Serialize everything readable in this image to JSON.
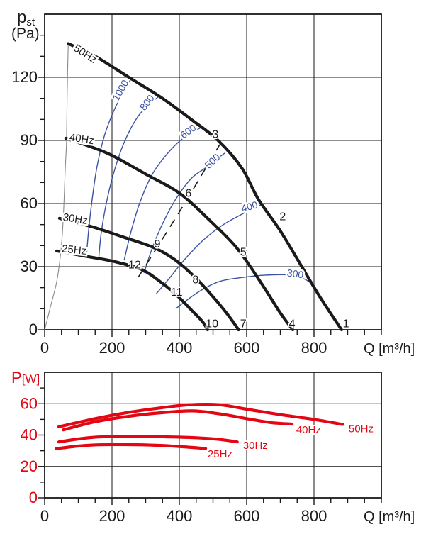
{
  "colors": {
    "black": "#1a1a1a",
    "blue": "#3b53a4",
    "red": "#e30613",
    "gray": "#8a8a8a",
    "grid": "#1a1a1a",
    "background": "#ffffff"
  },
  "chart_data": [
    {
      "type": "line",
      "title": "",
      "ylabel_main": "p",
      "ylabel_sub": "st",
      "ylabel_unit": "(Pa)",
      "xlabel": "Q [m³/h]",
      "xlim": [
        0,
        1000
      ],
      "ylim": [
        0,
        150
      ],
      "x_gridlines": [
        200,
        400,
        600,
        800
      ],
      "y_gridlines": [
        30,
        60,
        90,
        120
      ],
      "x_tick_labels": [
        "0",
        "200",
        "400",
        "600",
        "800"
      ],
      "x_tick_values": [
        0,
        200,
        400,
        600,
        800
      ],
      "y_tick_labels": [
        "0",
        "30",
        "60",
        "90",
        "120"
      ],
      "y_tick_values": [
        0,
        30,
        60,
        90,
        120
      ],
      "minor_x_step": 50,
      "minor_y_step": 10,
      "fan_curves": [
        {
          "label": "50Hz",
          "label_q": 84,
          "label_p": 133,
          "label_rot": 33,
          "points": [
            [
              70,
              136
            ],
            [
              150,
              130
            ],
            [
              250,
              120
            ],
            [
              350,
              110
            ],
            [
              435,
              100
            ],
            [
              515,
              90
            ],
            [
              585,
              77
            ],
            [
              635,
              62
            ],
            [
              700,
              47
            ],
            [
              760,
              31
            ],
            [
              820,
              15
            ],
            [
              882,
              0
            ]
          ]
        },
        {
          "label": "40Hz",
          "label_q": 72,
          "label_p": 90,
          "label_rot": 9,
          "points": [
            [
              63,
              91
            ],
            [
              185,
              84
            ],
            [
              300,
              74
            ],
            [
              400,
              65
            ],
            [
              490,
              52
            ],
            [
              570,
              39
            ],
            [
              640,
              23
            ],
            [
              700,
              8
            ],
            [
              737,
              0
            ]
          ]
        },
        {
          "label": "30Hz",
          "label_q": 53,
          "label_p": 52,
          "label_rot": 9,
          "points": [
            [
              44,
              53
            ],
            [
              140,
              49
            ],
            [
              235,
              44
            ],
            [
              325,
              39
            ],
            [
              385,
              33.5
            ],
            [
              440,
              26
            ],
            [
              490,
              17.5
            ],
            [
              540,
              8
            ],
            [
              576,
              0
            ]
          ]
        },
        {
          "label": "25Hz",
          "label_q": 50,
          "label_p": 37,
          "label_rot": 6,
          "points": [
            [
              36,
              37.5
            ],
            [
              120,
              35
            ],
            [
              205,
              32.5
            ],
            [
              290,
              28.5
            ],
            [
              350,
              22
            ],
            [
              395,
              16
            ],
            [
              435,
              9.5
            ],
            [
              468,
              4
            ],
            [
              484,
              0
            ]
          ]
        }
      ],
      "rpm_curves": [
        {
          "label": "1000",
          "label_q": 234,
          "label_p": 113,
          "label_rot": -60,
          "points": [
            [
              124,
              35
            ],
            [
              131,
              48
            ],
            [
              141,
              62
            ],
            [
              156,
              78
            ],
            [
              179,
              93
            ],
            [
              211,
              106
            ],
            [
              259,
              120
            ]
          ]
        },
        {
          "label": "800",
          "label_q": 312,
          "label_p": 107,
          "label_rot": -52,
          "points": [
            [
              160,
              33
            ],
            [
              168,
              46
            ],
            [
              183,
              60
            ],
            [
              204,
              74
            ],
            [
              236,
              89
            ],
            [
              280,
              102
            ],
            [
              339,
              111
            ]
          ]
        },
        {
          "label": "600",
          "label_q": 432,
          "label_p": 93,
          "label_rot": -36,
          "points": [
            [
              236,
              33
            ],
            [
              257,
              47
            ],
            [
              284,
              61
            ],
            [
              320,
              74
            ],
            [
              366,
              84
            ],
            [
              411,
              91
            ],
            [
              463,
              96
            ]
          ]
        },
        {
          "label": "500",
          "label_q": 505,
          "label_p": 79,
          "label_rot": -43,
          "points": [
            [
              295,
              27
            ],
            [
              320,
              39
            ],
            [
              352,
              51
            ],
            [
              389,
              62
            ],
            [
              436,
              72
            ],
            [
              478,
              77
            ],
            [
              535,
              84
            ]
          ]
        },
        {
          "label": "400",
          "label_q": 611,
          "label_p": 57,
          "label_rot": -16,
          "points": [
            [
              331,
              17
            ],
            [
              373,
              25
            ],
            [
              419,
              34
            ],
            [
              474,
              43
            ],
            [
              531,
              50
            ],
            [
              587,
              55
            ],
            [
              650,
              60
            ]
          ]
        },
        {
          "label": "300",
          "label_q": 743,
          "label_p": 25,
          "label_rot": 8,
          "points": [
            [
              389,
              10
            ],
            [
              457,
              18
            ],
            [
              520,
              23
            ],
            [
              594,
              25
            ],
            [
              657,
              26
            ],
            [
              731,
              26
            ],
            [
              773,
              24
            ],
            [
              800,
              21
            ]
          ]
        }
      ],
      "surge_line": {
        "points": [
          [
            0,
            0
          ],
          [
            19,
            12
          ],
          [
            36,
            23
          ],
          [
            48,
            37
          ],
          [
            55,
            52
          ],
          [
            61,
            76
          ],
          [
            65,
            90
          ],
          [
            67,
            113
          ],
          [
            70,
            136
          ]
        ]
      },
      "dashed_line": {
        "points": [
          [
            278,
            25
          ],
          [
            400,
            56
          ],
          [
            520,
            88
          ]
        ]
      },
      "point_labels": [
        {
          "label": "1",
          "q": 895,
          "p": 3
        },
        {
          "label": "2",
          "q": 707,
          "p": 54
        },
        {
          "label": "3",
          "q": 507,
          "p": 93
        },
        {
          "label": "4",
          "q": 735,
          "p": 3
        },
        {
          "label": "5",
          "q": 590,
          "p": 37
        },
        {
          "label": "6",
          "q": 427,
          "p": 65
        },
        {
          "label": "7",
          "q": 590,
          "p": 3
        },
        {
          "label": "8",
          "q": 448,
          "p": 24
        },
        {
          "label": "9",
          "q": 335,
          "p": 41
        },
        {
          "label": "10",
          "q": 497,
          "p": 3
        },
        {
          "label": "11",
          "q": 392,
          "p": 18
        },
        {
          "label": "12",
          "q": 267,
          "p": 31
        }
      ]
    },
    {
      "type": "line",
      "title": "",
      "ylabel_main": "P",
      "ylabel_unit": "[W]",
      "xlabel": "Q [m³/h]",
      "xlim": [
        0,
        1000
      ],
      "ylim": [
        0,
        80
      ],
      "x_gridlines": [
        200,
        400,
        600,
        800
      ],
      "y_gridlines": [
        20,
        40,
        60
      ],
      "x_tick_labels": [
        "0",
        "200",
        "400",
        "600",
        "800"
      ],
      "x_tick_values": [
        0,
        200,
        400,
        600,
        800
      ],
      "y_tick_labels": [
        "0",
        "20",
        "40",
        "60"
      ],
      "y_tick_values": [
        0,
        20,
        40,
        60
      ],
      "minor_x_step": 50,
      "minor_y_step": 10,
      "power_curves": [
        {
          "label": "50Hz",
          "label_q": 903,
          "label_p": 44,
          "points": [
            [
              42,
              45.3
            ],
            [
              150,
              50.5
            ],
            [
              250,
              54.5
            ],
            [
              350,
              57.5
            ],
            [
              430,
              59.3
            ],
            [
              520,
              59.3
            ],
            [
              600,
              56.5
            ],
            [
              700,
              53
            ],
            [
              800,
              50
            ],
            [
              885,
              46.8
            ]
          ]
        },
        {
          "label": "40Hz",
          "label_q": 747,
          "label_p": 43.5,
          "points": [
            [
              55,
              43.3
            ],
            [
              150,
              48.5
            ],
            [
              250,
              52
            ],
            [
              350,
              54.3
            ],
            [
              440,
              55.4
            ],
            [
              520,
              53.5
            ],
            [
              600,
              50.5
            ],
            [
              670,
              48
            ],
            [
              735,
              47
            ]
          ]
        },
        {
          "label": "30Hz",
          "label_q": 589,
          "label_p": 33.5,
          "points": [
            [
              42,
              35.6
            ],
            [
              100,
              37.5
            ],
            [
              160,
              38.8
            ],
            [
              250,
              39.2
            ],
            [
              350,
              38.9
            ],
            [
              450,
              38.3
            ],
            [
              520,
              37.2
            ],
            [
              572,
              35.6
            ]
          ]
        },
        {
          "label": "25Hz",
          "label_q": 484,
          "label_p": 28,
          "points": [
            [
              34,
              31.3
            ],
            [
              100,
              33
            ],
            [
              160,
              33.8
            ],
            [
              250,
              33.9
            ],
            [
              330,
              33.5
            ],
            [
              400,
              32.7
            ],
            [
              478,
              31.4
            ]
          ]
        }
      ]
    }
  ]
}
